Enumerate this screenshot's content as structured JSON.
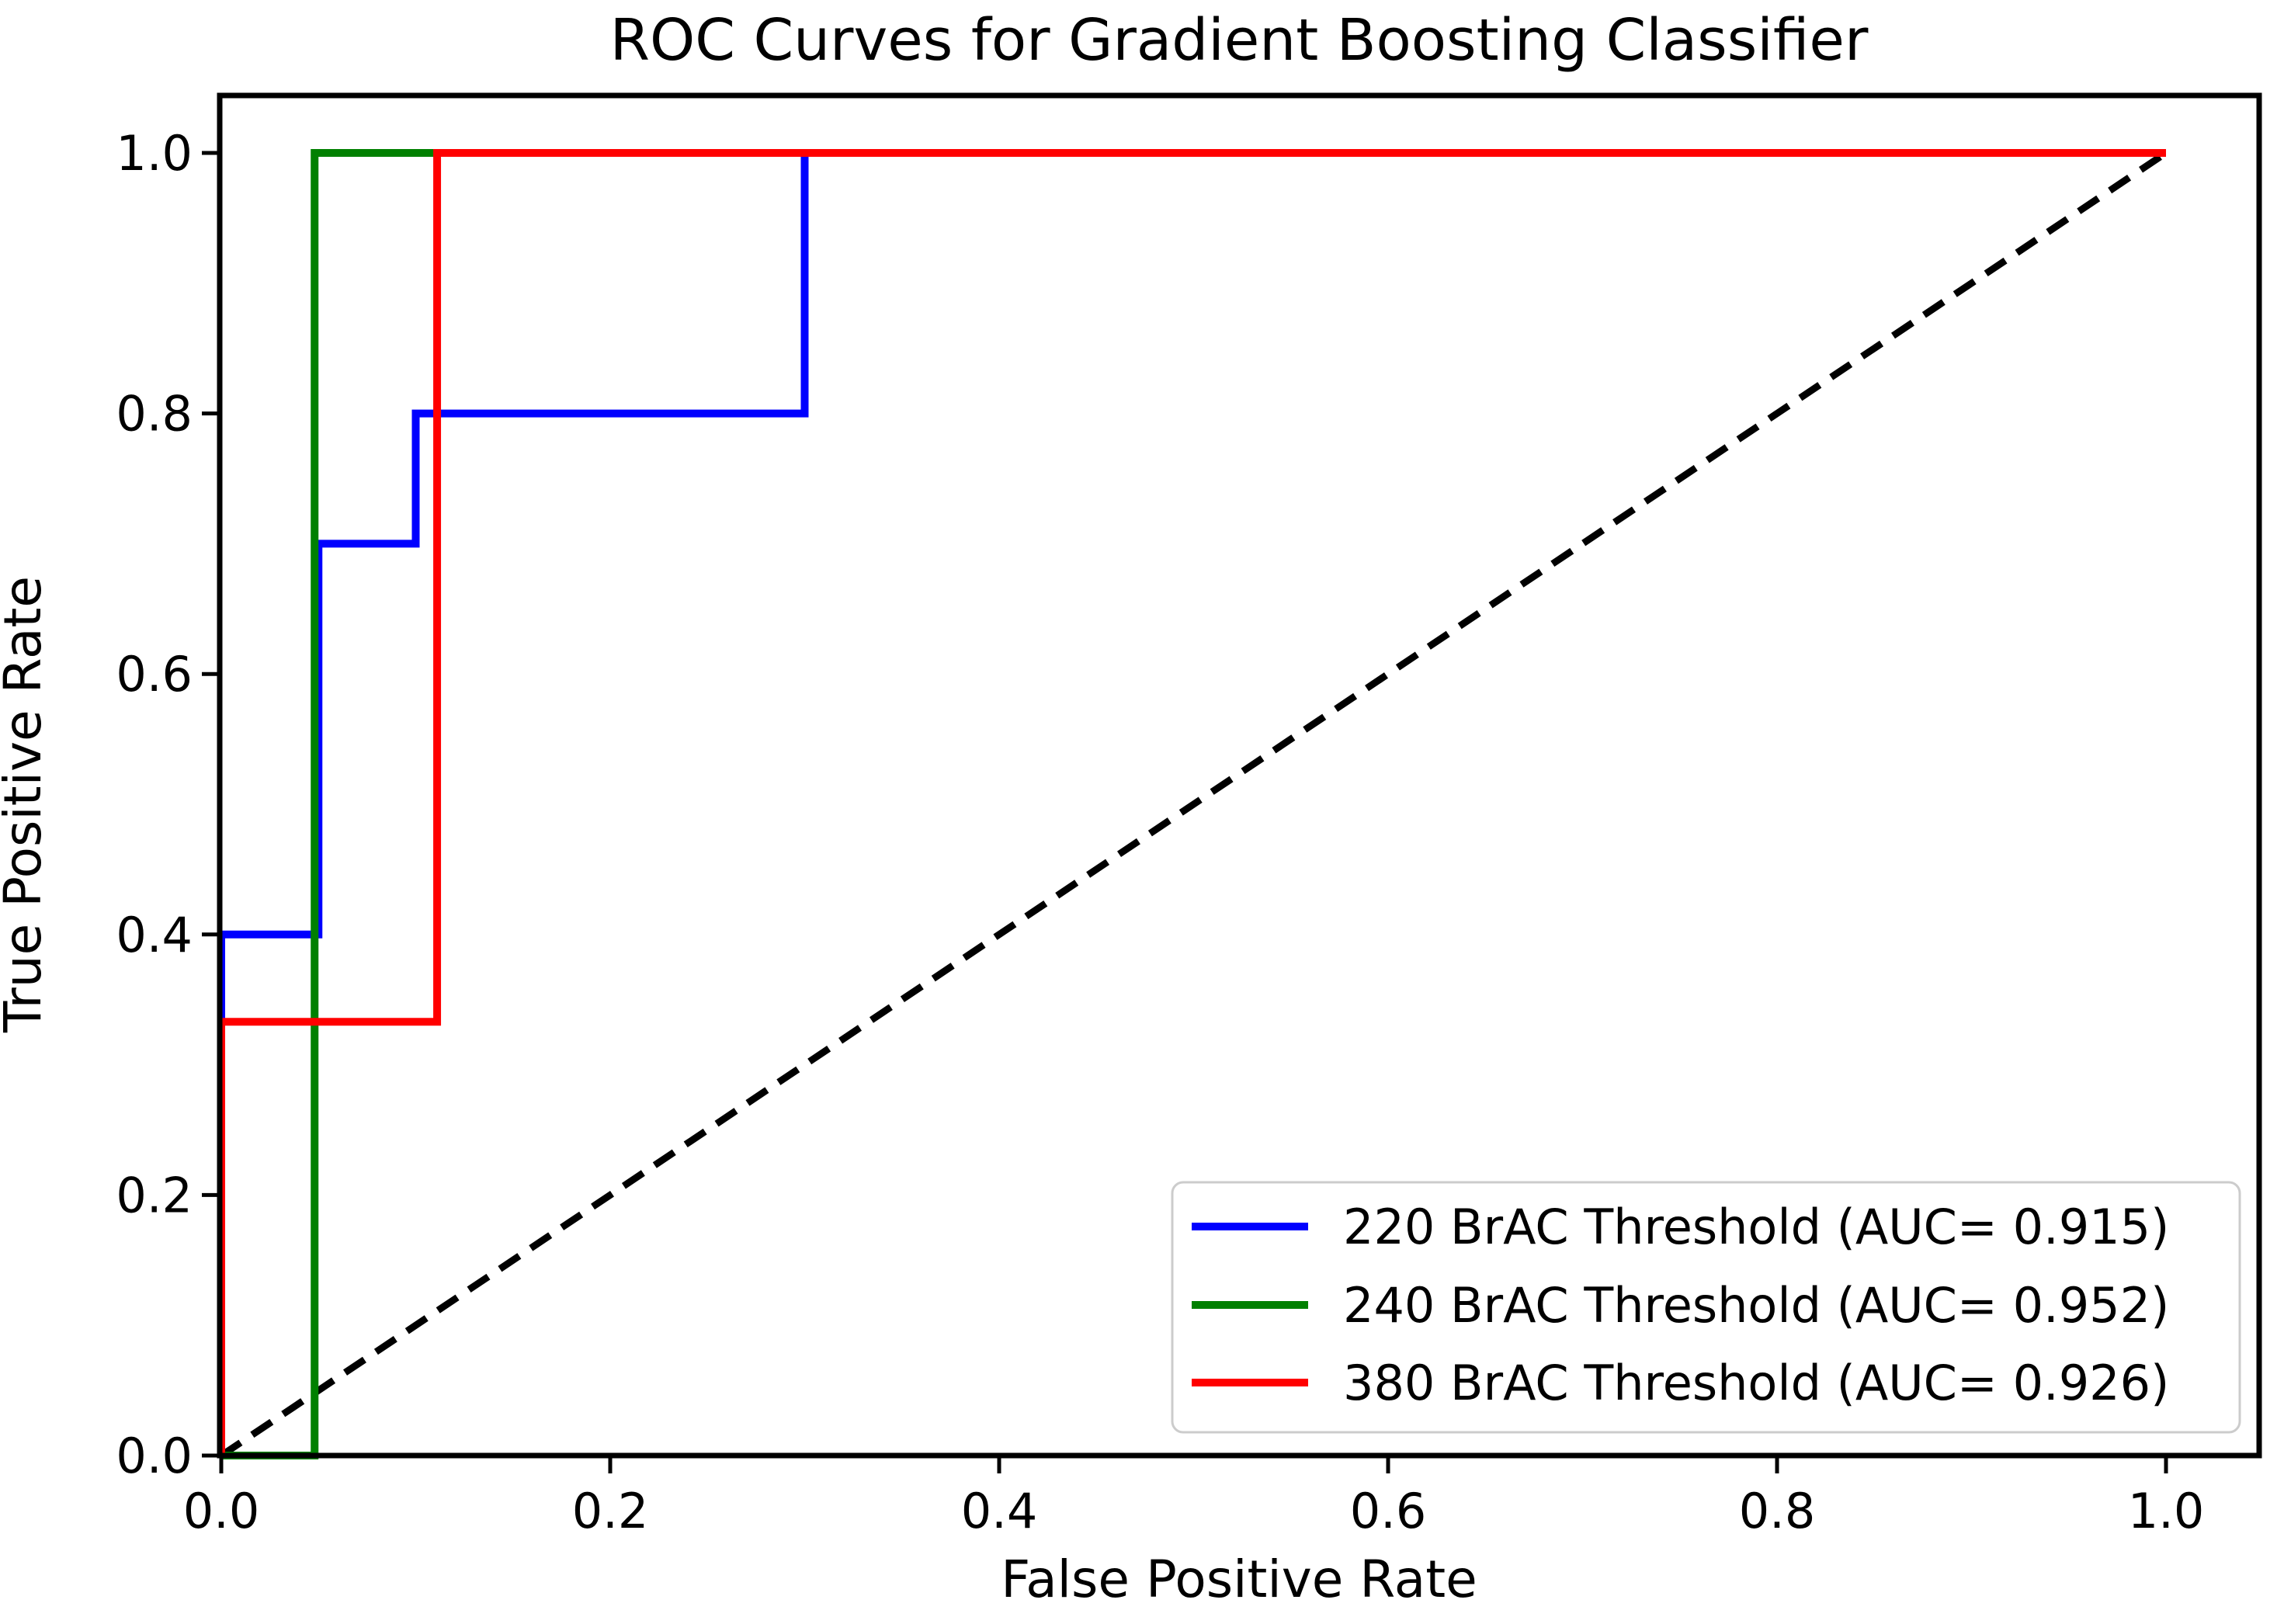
{
  "figure": {
    "background": "#ffffff"
  },
  "chart_data": {
    "type": "line",
    "subtype": "roc-step-curves",
    "title": "ROC Curves for Gradient Boosting Classifier",
    "xlabel": "False Positive Rate",
    "ylabel": "True Positive Rate",
    "xlim": [
      0,
      1.05
    ],
    "ylim": [
      0,
      1.05
    ],
    "grid": false,
    "legend_position": "lower right",
    "legend_border_color": "#cccccc",
    "axis_color": "#000000",
    "xticks": {
      "values": [
        0,
        0.2,
        0.4,
        0.6,
        0.8,
        1.0
      ],
      "labels": [
        "0.0",
        "0.2",
        "0.4",
        "0.6",
        "0.8",
        "1.0"
      ]
    },
    "yticks": {
      "values": [
        0,
        0.2,
        0.4,
        0.6,
        0.8,
        1.0
      ],
      "labels": [
        "0.0",
        "0.2",
        "0.4",
        "0.6",
        "0.8",
        "1.0"
      ]
    },
    "series": [
      {
        "label": "220 BrAC Threshold (AUC= 0.915)",
        "threshold": "220",
        "auc": "0.915",
        "color": "#0000ff",
        "x": [
          0,
          0,
          0.05,
          0.05,
          0.1,
          0.1,
          0.3,
          0.3,
          1.0
        ],
        "y": [
          0,
          0.4,
          0.4,
          0.7,
          0.7,
          0.8,
          0.8,
          1.0,
          1.0
        ]
      },
      {
        "label": "240 BrAC Threshold (AUC= 0.952)",
        "threshold": "240",
        "auc": "0.952",
        "color": "#008000",
        "x": [
          0,
          0.048,
          0.048,
          1.0
        ],
        "y": [
          0,
          0,
          1.0,
          1.0
        ]
      },
      {
        "label": "380 BrAC Threshold (AUC= 0.926)",
        "threshold": "380",
        "auc": "0.926",
        "color": "#ff0000",
        "x": [
          0,
          0,
          0.111,
          0.111,
          1.0
        ],
        "y": [
          0,
          0.333,
          0.333,
          1.0,
          1.0
        ]
      }
    ],
    "reference_line": {
      "name": "chance-diagonal",
      "style": "dashed",
      "color": "#000000",
      "x": [
        0,
        1
      ],
      "y": [
        0,
        1
      ]
    }
  }
}
